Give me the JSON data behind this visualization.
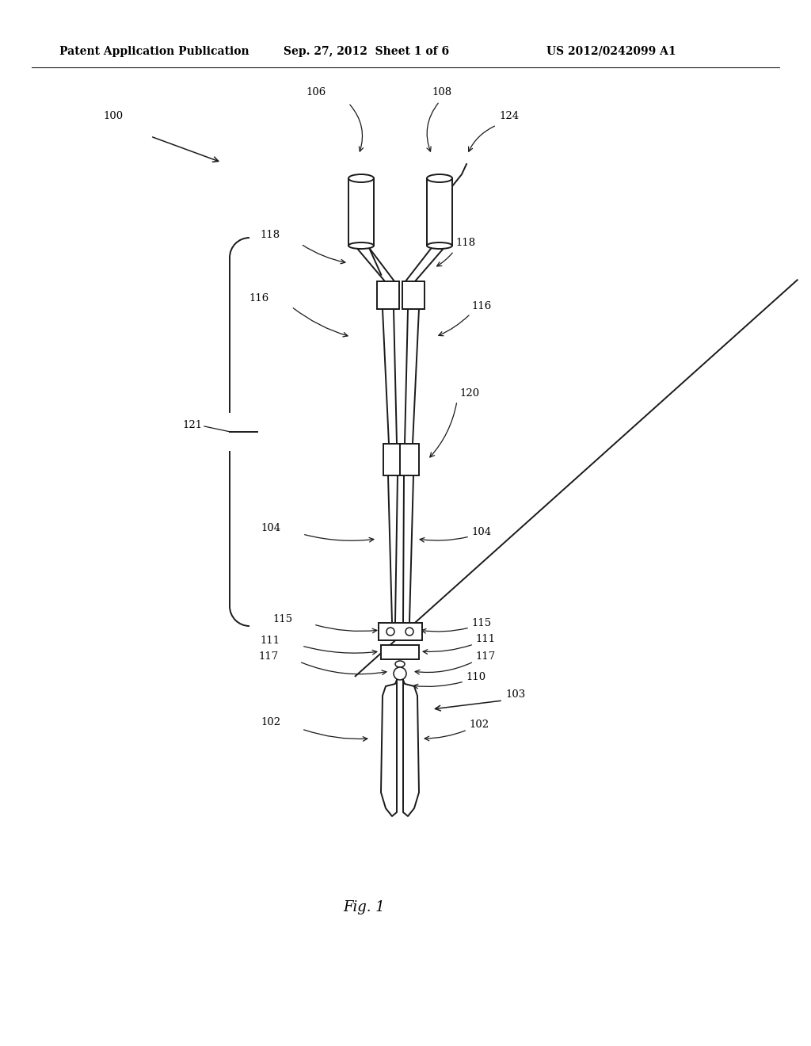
{
  "bg_color": "#ffffff",
  "line_color": "#1a1a1a",
  "header_left": "Patent Application Publication",
  "header_mid": "Sep. 27, 2012  Sheet 1 of 6",
  "header_right": "US 2012/0242099 A1",
  "fig_label": "Fig. 1",
  "figsize": [
    10.24,
    13.2
  ],
  "dpi": 100,
  "lw_main": 1.4,
  "lw_thin": 0.9,
  "label_fontsize": 9.5,
  "header_fontsize": 10,
  "fig1_fontsize": 13
}
